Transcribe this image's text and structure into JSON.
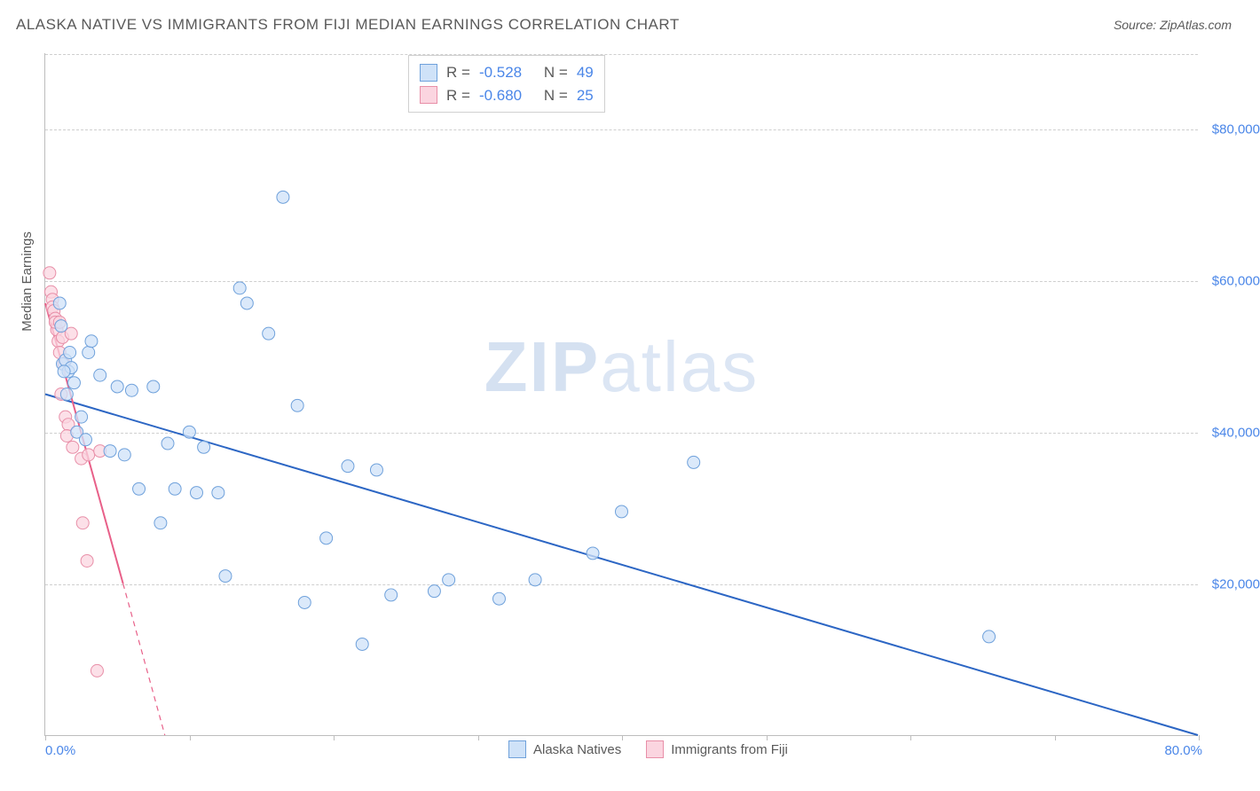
{
  "header": {
    "title": "ALASKA NATIVE VS IMMIGRANTS FROM FIJI MEDIAN EARNINGS CORRELATION CHART",
    "source_prefix": "Source: ",
    "source": "ZipAtlas.com"
  },
  "watermark": {
    "zip": "ZIP",
    "atlas": "atlas"
  },
  "axes": {
    "y_title": "Median Earnings",
    "x_min_label": "0.0%",
    "x_max_label": "80.0%",
    "y_tick_labels": [
      "$20,000",
      "$40,000",
      "$60,000",
      "$80,000"
    ],
    "y_tick_values": [
      20000,
      40000,
      60000,
      80000
    ],
    "x_tick_values": [
      0,
      10,
      20,
      30,
      40,
      50,
      60,
      70,
      80
    ],
    "xlim": [
      0,
      80
    ],
    "ylim": [
      0,
      90000
    ],
    "grid_color": "#cfcfcf",
    "axis_color": "#bdbdbd",
    "label_color": "#4a86e8",
    "label_fontsize": 15
  },
  "series": {
    "alaska": {
      "label": "Alaska Natives",
      "fill": "#cfe2f8",
      "stroke": "#6fa1db",
      "line_color": "#2c66c4",
      "line_width": 2,
      "marker_radius": 7,
      "R_label": "R =",
      "R": "-0.528",
      "N_label": "N =",
      "N": "49",
      "trend": {
        "x1": 0,
        "y1": 45000,
        "x2": 80,
        "y2": 0
      },
      "points": [
        [
          1.0,
          57000
        ],
        [
          1.2,
          49000
        ],
        [
          1.4,
          49500
        ],
        [
          1.6,
          48000
        ],
        [
          1.8,
          48500
        ],
        [
          2.0,
          46500
        ],
        [
          1.5,
          45000
        ],
        [
          1.7,
          50500
        ],
        [
          2.2,
          40000
        ],
        [
          2.5,
          42000
        ],
        [
          2.8,
          39000
        ],
        [
          3.0,
          50500
        ],
        [
          3.8,
          47500
        ],
        [
          4.5,
          37500
        ],
        [
          5.0,
          46000
        ],
        [
          5.5,
          37000
        ],
        [
          6.0,
          45500
        ],
        [
          6.5,
          32500
        ],
        [
          7.5,
          46000
        ],
        [
          8.0,
          28000
        ],
        [
          8.5,
          38500
        ],
        [
          9.0,
          32500
        ],
        [
          10.0,
          40000
        ],
        [
          10.5,
          32000
        ],
        [
          11.0,
          38000
        ],
        [
          12.0,
          32000
        ],
        [
          12.5,
          21000
        ],
        [
          13.5,
          59000
        ],
        [
          14.0,
          57000
        ],
        [
          15.5,
          53000
        ],
        [
          16.5,
          71000
        ],
        [
          17.5,
          43500
        ],
        [
          18.0,
          17500
        ],
        [
          19.5,
          26000
        ],
        [
          21.0,
          35500
        ],
        [
          22.0,
          12000
        ],
        [
          23.0,
          35000
        ],
        [
          24.0,
          18500
        ],
        [
          27.0,
          19000
        ],
        [
          28.0,
          20500
        ],
        [
          31.5,
          18000
        ],
        [
          34.0,
          20500
        ],
        [
          38.0,
          24000
        ],
        [
          40.0,
          29500
        ],
        [
          45.0,
          36000
        ],
        [
          65.5,
          13000
        ],
        [
          3.2,
          52000
        ],
        [
          1.1,
          54000
        ],
        [
          1.3,
          48000
        ]
      ]
    },
    "fiji": {
      "label": "Immigrants from Fiji",
      "fill": "#fbd5e0",
      "stroke": "#e88fa8",
      "line_color": "#e86089",
      "line_width": 2,
      "marker_radius": 7,
      "R_label": "R =",
      "R": "-0.680",
      "N_label": "N =",
      "N": "25",
      "trend_solid": {
        "x1": 0,
        "y1": 57000,
        "x2": 5.4,
        "y2": 20000
      },
      "trend_dash": {
        "x1": 5.4,
        "y1": 20000,
        "x2": 8.3,
        "y2": 0
      },
      "points": [
        [
          0.3,
          61000
        ],
        [
          0.4,
          58500
        ],
        [
          0.5,
          57500
        ],
        [
          0.5,
          56500
        ],
        [
          0.6,
          56000
        ],
        [
          0.7,
          55000
        ],
        [
          0.8,
          53500
        ],
        [
          0.7,
          54500
        ],
        [
          0.9,
          52000
        ],
        [
          1.0,
          54500
        ],
        [
          1.0,
          50500
        ],
        [
          1.2,
          52500
        ],
        [
          1.3,
          49000
        ],
        [
          1.8,
          53000
        ],
        [
          1.1,
          45000
        ],
        [
          1.4,
          42000
        ],
        [
          1.6,
          41000
        ],
        [
          1.5,
          39500
        ],
        [
          1.9,
          38000
        ],
        [
          2.5,
          36500
        ],
        [
          2.6,
          28000
        ],
        [
          3.0,
          37000
        ],
        [
          3.8,
          37500
        ],
        [
          2.9,
          23000
        ],
        [
          3.6,
          8500
        ]
      ]
    }
  },
  "corr_box": {
    "border": "#d0d0d0"
  }
}
